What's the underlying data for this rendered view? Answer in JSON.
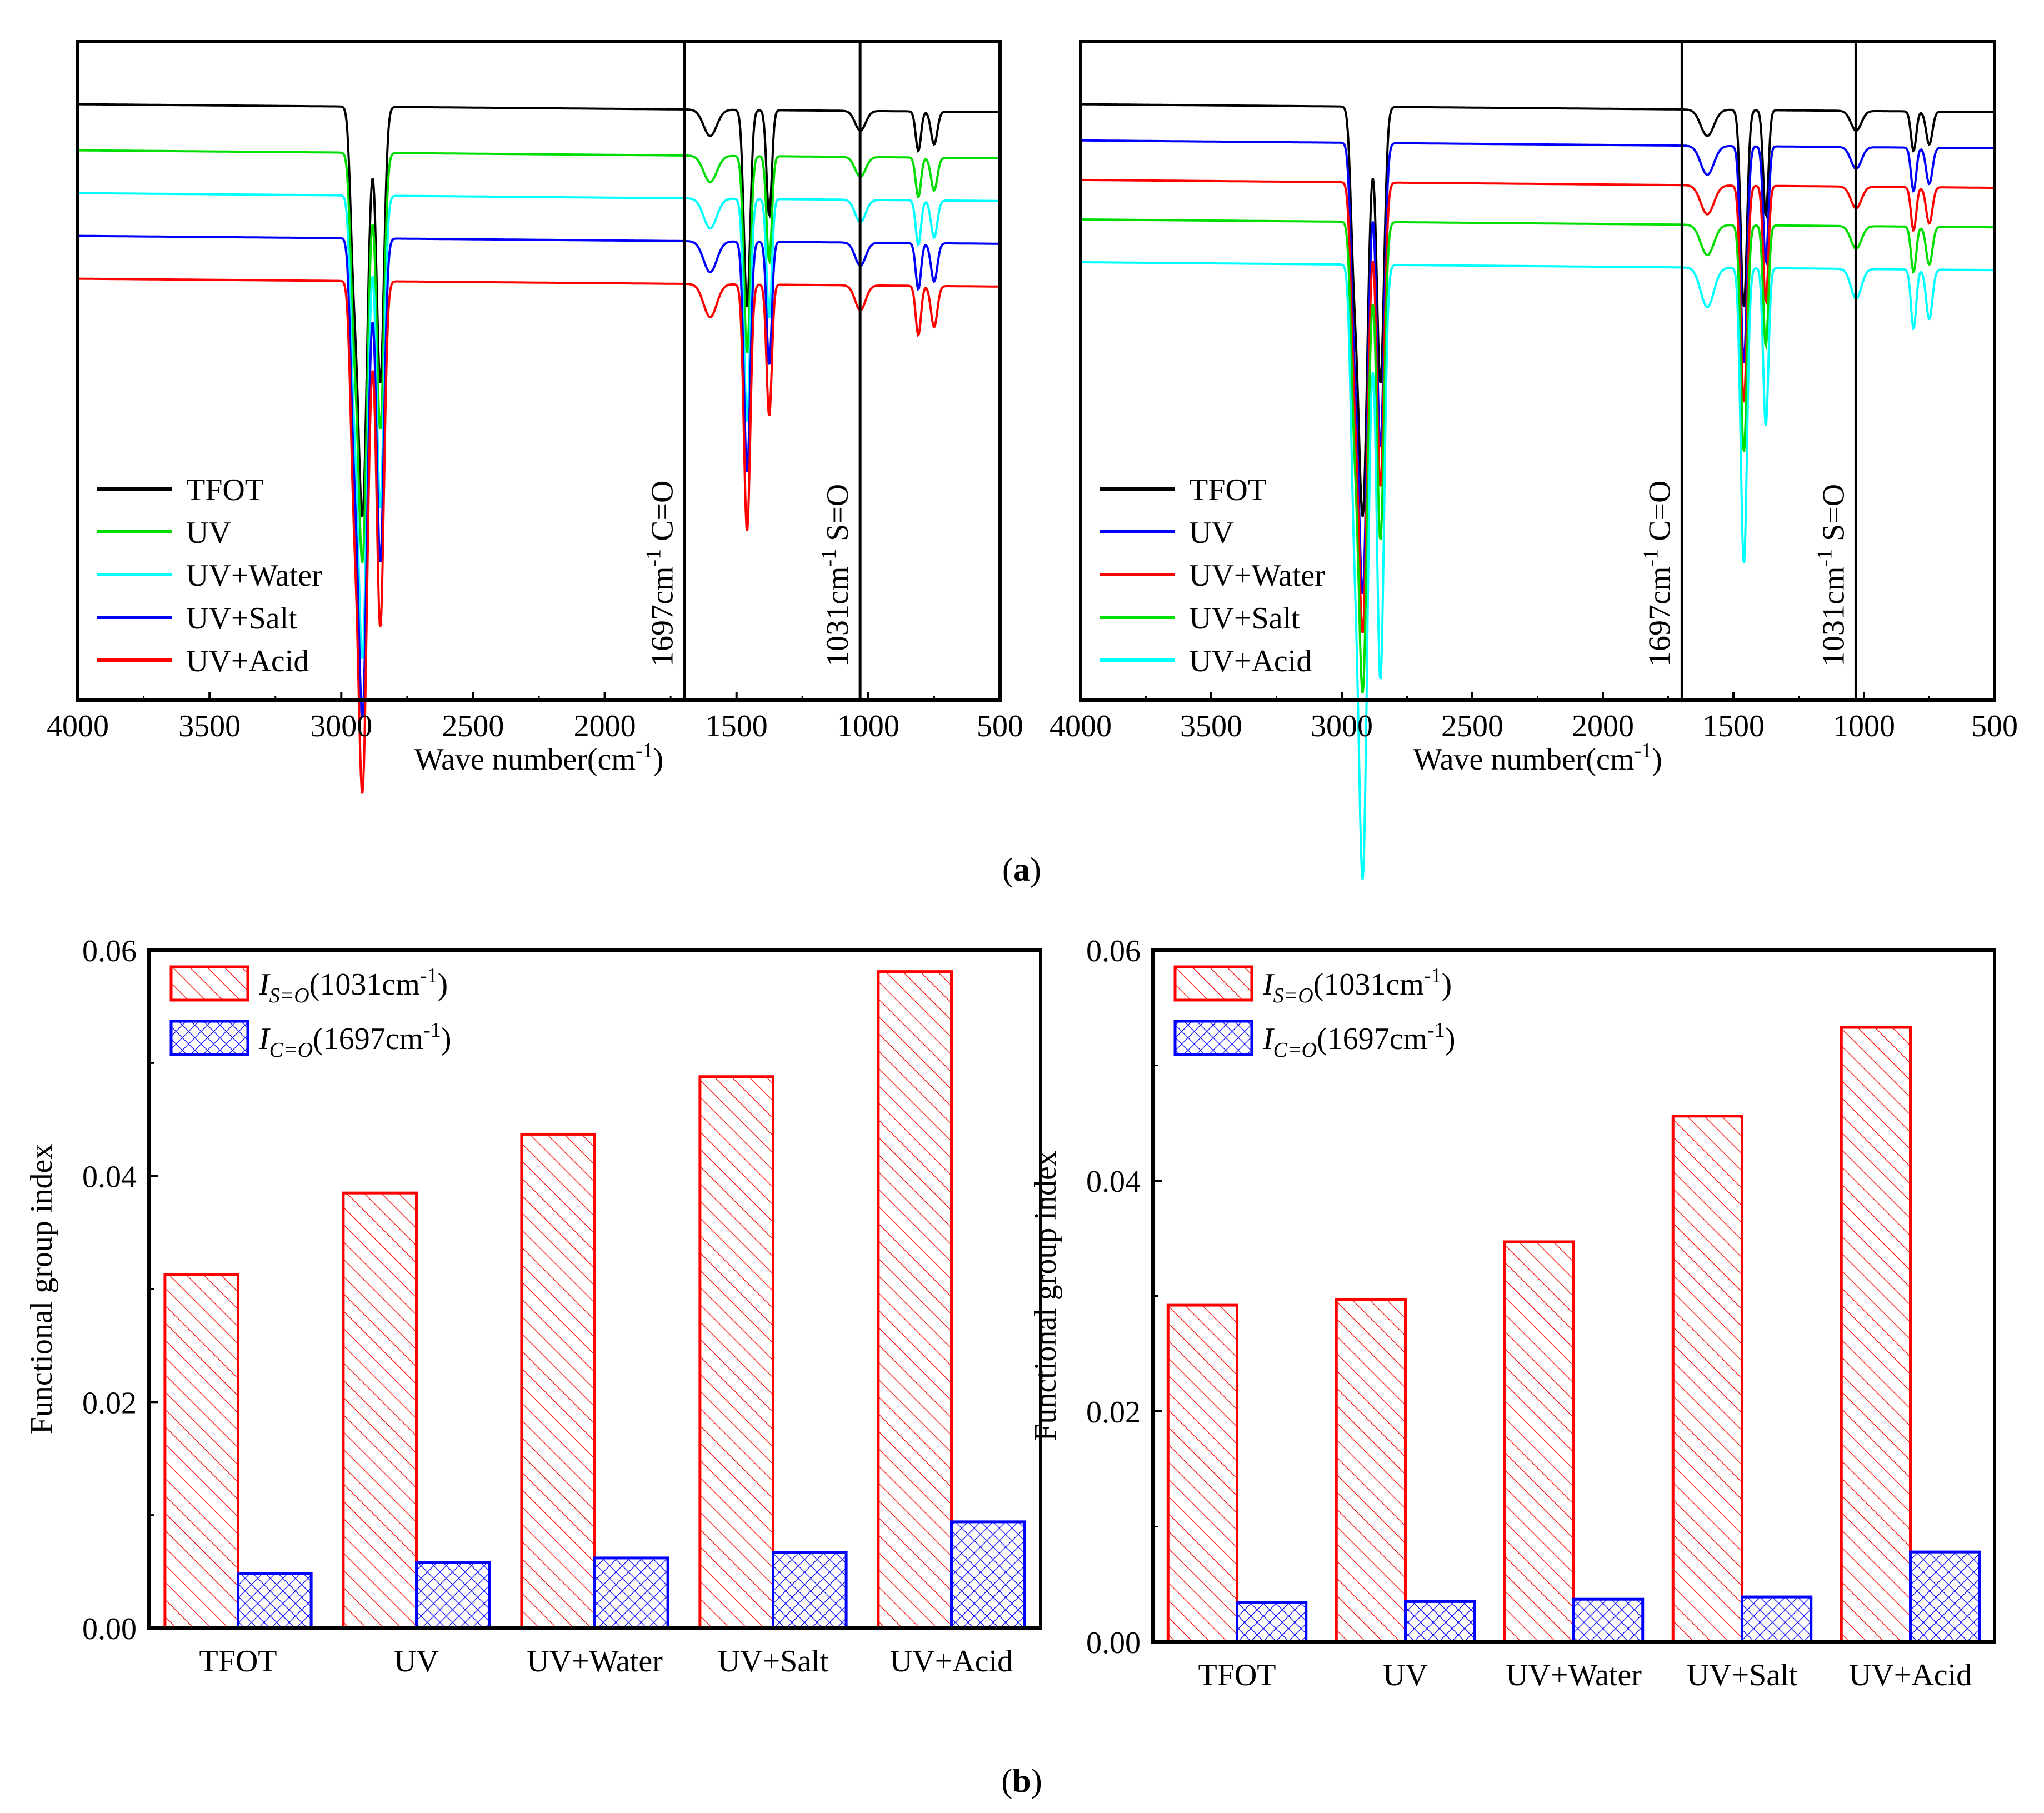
{
  "captions": {
    "a": "a",
    "b": "b"
  },
  "chart_data": [
    {
      "type": "line",
      "panel": "a-left",
      "xlabel": "Wave number(cm",
      "xlabel_sup": "-1",
      "xlabel_tail": ")",
      "xlim": [
        4000,
        500
      ],
      "x_reversed": true,
      "xticks": [
        4000,
        3500,
        3000,
        2500,
        2000,
        1500,
        1000,
        500
      ],
      "y_ticks_shown": false,
      "vlines": [
        {
          "x": 1697,
          "label": "1697cm",
          "sup": "-1",
          "tail": " C=O"
        },
        {
          "x": 1031,
          "label": "1031cm",
          "sup": "-1",
          "tail": " S=O"
        }
      ],
      "series": [
        {
          "name": "TFOT",
          "color": "#000000",
          "baseline": 0.905,
          "scale": 1.0
        },
        {
          "name": "UV",
          "color": "#00dd00",
          "baseline": 0.835,
          "scale": 1.0
        },
        {
          "name": "UV+Water",
          "color": "#00ffff",
          "baseline": 0.77,
          "scale": 1.13
        },
        {
          "name": "UV+Salt",
          "color": "#0000ff",
          "baseline": 0.705,
          "scale": 1.17
        },
        {
          "name": "UV+Acid",
          "color": "#ff0000",
          "baseline": 0.64,
          "scale": 1.25
        }
      ]
    },
    {
      "type": "line",
      "panel": "a-right",
      "xlabel": "Wave number(cm",
      "xlabel_sup": "-1",
      "xlabel_tail": ")",
      "xlim": [
        4000,
        500
      ],
      "x_reversed": true,
      "xticks": [
        4000,
        3500,
        3000,
        2500,
        2000,
        1500,
        1000,
        500
      ],
      "y_ticks_shown": false,
      "vlines": [
        {
          "x": 1697,
          "label": "1697cm",
          "sup": "-1",
          "tail": " C=O"
        },
        {
          "x": 1031,
          "label": "1031cm",
          "sup": "-1",
          "tail": " S=O"
        }
      ],
      "series": [
        {
          "name": "TFOT",
          "color": "#000000",
          "baseline": 0.905,
          "scale": 1.0
        },
        {
          "name": "UV",
          "color": "#0000ff",
          "baseline": 0.85,
          "scale": 1.1
        },
        {
          "name": "UV+Water",
          "color": "#ff0000",
          "baseline": 0.79,
          "scale": 1.1
        },
        {
          "name": "UV+Salt",
          "color": "#00dd00",
          "baseline": 0.73,
          "scale": 1.15
        },
        {
          "name": "UV+Acid",
          "color": "#00ffff",
          "baseline": 0.665,
          "scale": 1.5
        }
      ]
    },
    {
      "type": "bar",
      "panel": "b-left",
      "categories": [
        "TFOT",
        "UV",
        "UV+Water",
        "UV+Salt",
        "UV+Acid"
      ],
      "ylabel": "Functional group index",
      "ylim": [
        0,
        0.06
      ],
      "yticks": [
        "0.00",
        "0.02",
        "0.04",
        "0.06"
      ],
      "series": [
        {
          "name": "I",
          "sub": "S=O",
          "tail": "(1031cm",
          "sup": "-1",
          "close": ")",
          "color": "#ff0000",
          "pattern": "hatch",
          "values": [
            0.0313,
            0.0385,
            0.0437,
            0.0488,
            0.0581
          ]
        },
        {
          "name": "I",
          "sub": "C=O",
          "tail": "(1697cm",
          "sup": "-1",
          "close": ")",
          "color": "#0000ff",
          "pattern": "cross",
          "values": [
            0.0048,
            0.0058,
            0.0062,
            0.0067,
            0.0094
          ]
        }
      ]
    },
    {
      "type": "bar",
      "panel": "b-right",
      "categories": [
        "TFOT",
        "UV",
        "UV+Water",
        "UV+Salt",
        "UV+Acid"
      ],
      "ylabel": "Functional group index",
      "ylim": [
        0,
        0.06
      ],
      "yticks": [
        "0.00",
        "0.02",
        "0.04",
        "0.06"
      ],
      "series": [
        {
          "name": "I",
          "sub": "S=O",
          "tail": "(1031cm",
          "sup": "-1",
          "close": ")",
          "color": "#ff0000",
          "pattern": "hatch",
          "values": [
            0.0292,
            0.0297,
            0.0347,
            0.0456,
            0.0533
          ]
        },
        {
          "name": "I",
          "sub": "C=O",
          "tail": "(1697cm",
          "sup": "-1",
          "close": ")",
          "color": "#0000ff",
          "pattern": "cross",
          "values": [
            0.0034,
            0.0035,
            0.0037,
            0.0039,
            0.0078
          ]
        }
      ]
    }
  ]
}
